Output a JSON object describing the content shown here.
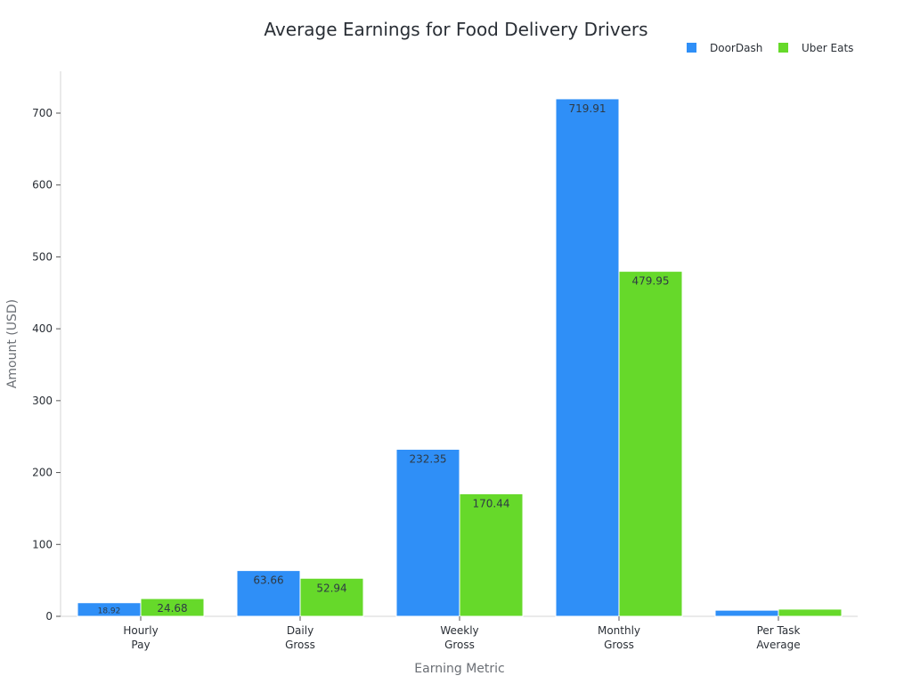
{
  "chart_data": {
    "type": "bar",
    "title": "Average Earnings for Food Delivery Drivers",
    "xlabel": "Earning Metric",
    "ylabel": "Amount (USD)",
    "categories": [
      [
        "Hourly",
        "Pay"
      ],
      [
        "Daily",
        "Gross"
      ],
      [
        "Weekly",
        "Gross"
      ],
      [
        "Monthly",
        "Gross"
      ],
      [
        "Per Task",
        "Average"
      ]
    ],
    "series": [
      {
        "name": "DoorDash",
        "color": "#2f8ff7",
        "values": [
          18.92,
          63.66,
          232.35,
          719.91,
          8.5
        ],
        "labels": [
          "18.92",
          "63.66",
          "232.35",
          "719.91",
          ""
        ]
      },
      {
        "name": "Uber Eats",
        "color": "#66d92a",
        "values": [
          24.68,
          52.94,
          170.44,
          479.95,
          10.0
        ],
        "labels": [
          "24.68",
          "52.94",
          "170.44",
          "479.95",
          ""
        ]
      }
    ],
    "ylim": [
      0,
      755
    ],
    "yticks": [
      0,
      100,
      200,
      300,
      400,
      500,
      600,
      700
    ],
    "legend_position": "top-right",
    "grid": false
  }
}
